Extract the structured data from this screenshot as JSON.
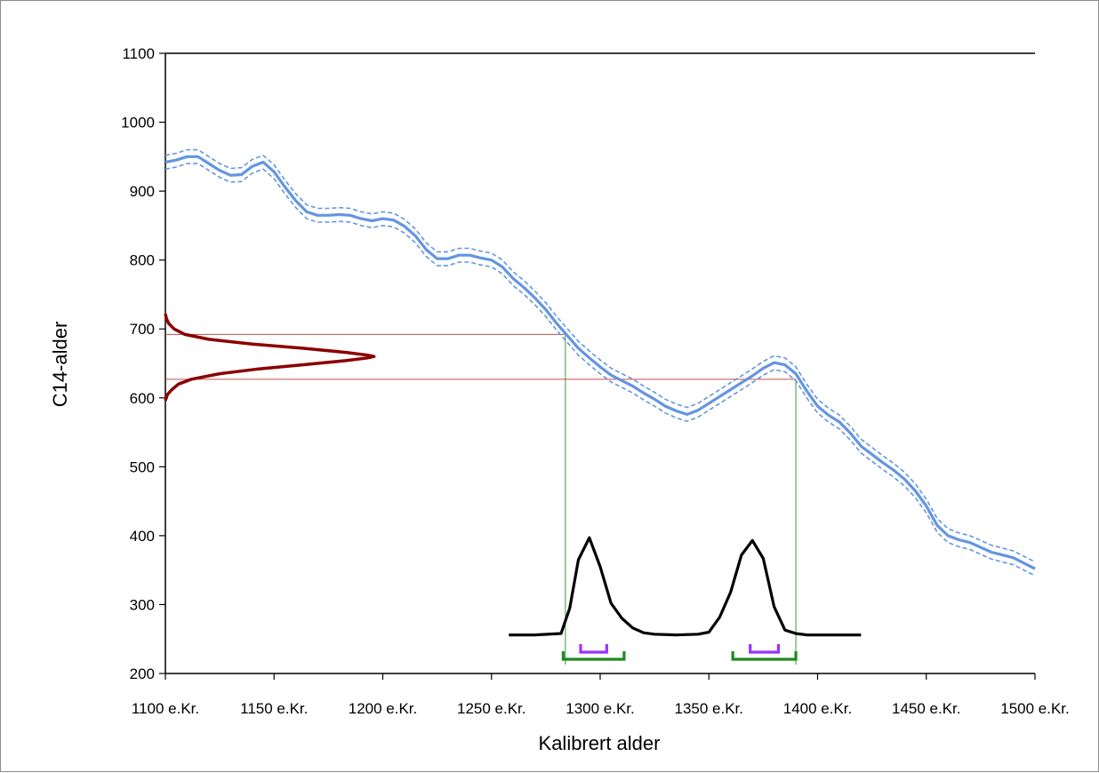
{
  "chart_data": {
    "type": "line",
    "xlabel": "Kalibrert alder",
    "ylabel": "C14-alder",
    "xlim": [
      1100,
      1500
    ],
    "ylim": [
      200,
      1100
    ],
    "x_ticks": [
      1100,
      1150,
      1200,
      1250,
      1300,
      1350,
      1400,
      1450,
      1500
    ],
    "x_tick_labels": [
      "1100 e.Kr.",
      "1150 e.Kr.",
      "1200 e.Kr.",
      "1250 e.Kr.",
      "1300 e.Kr.",
      "1350 e.Kr.",
      "1400 e.Kr.",
      "1450 e.Kr.",
      "1500 e.Kr."
    ],
    "y_ticks": [
      200,
      300,
      400,
      500,
      600,
      700,
      800,
      900,
      1000,
      1100
    ],
    "y_tick_labels": [
      "200",
      "300",
      "400",
      "500",
      "600",
      "700",
      "800",
      "900",
      "1000",
      "1100"
    ],
    "grid": false,
    "colors": {
      "calibration_curve": "#6495e0",
      "c14_distribution": "#8b0000",
      "range_lines_horizontal": "#c0504d",
      "range_lines_vertical": "#3a9a3a",
      "calibrated_distribution": "#000000",
      "range_95": "#1e8a1e",
      "range_68": "#9933ff"
    },
    "series": [
      {
        "style": "solid",
        "x": [
          1100,
          1105,
          1110,
          1115,
          1120,
          1125,
          1130,
          1135,
          1140,
          1145,
          1150,
          1155,
          1160,
          1165,
          1170,
          1175,
          1180,
          1185,
          1190,
          1195,
          1200,
          1205,
          1210,
          1215,
          1220,
          1225,
          1230,
          1235,
          1240,
          1245,
          1250,
          1255,
          1260,
          1265,
          1270,
          1275,
          1280,
          1285,
          1290,
          1295,
          1300,
          1305,
          1310,
          1315,
          1320,
          1325,
          1330,
          1335,
          1340,
          1345,
          1350,
          1355,
          1360,
          1365,
          1370,
          1375,
          1380,
          1385,
          1390,
          1395,
          1400,
          1405,
          1410,
          1415,
          1420,
          1425,
          1430,
          1435,
          1440,
          1445,
          1450,
          1455,
          1460,
          1465,
          1470,
          1475,
          1480,
          1485,
          1490,
          1495,
          1500
        ],
        "y": [
          942,
          945,
          950,
          950,
          940,
          930,
          923,
          924,
          936,
          942,
          928,
          906,
          886,
          870,
          865,
          865,
          866,
          865,
          860,
          857,
          860,
          858,
          849,
          835,
          815,
          802,
          802,
          807,
          807,
          803,
          800,
          790,
          773,
          760,
          745,
          728,
          708,
          690,
          672,
          658,
          645,
          633,
          625,
          617,
          607,
          598,
          588,
          581,
          576,
          582,
          592,
          602,
          612,
          622,
          632,
          643,
          651,
          648,
          635,
          610,
          588,
          575,
          565,
          549,
          530,
          518,
          506,
          495,
          482,
          465,
          443,
          415,
          400,
          394,
          390,
          383,
          376,
          372,
          368,
          360,
          352
        ]
      },
      {
        "style": "dashed",
        "x": [
          1100,
          1105,
          1110,
          1115,
          1120,
          1125,
          1130,
          1135,
          1140,
          1145,
          1150,
          1155,
          1160,
          1165,
          1170,
          1175,
          1180,
          1185,
          1190,
          1195,
          1200,
          1205,
          1210,
          1215,
          1220,
          1225,
          1230,
          1235,
          1240,
          1245,
          1250,
          1255,
          1260,
          1265,
          1270,
          1275,
          1280,
          1285,
          1290,
          1295,
          1300,
          1305,
          1310,
          1315,
          1320,
          1325,
          1330,
          1335,
          1340,
          1345,
          1350,
          1355,
          1360,
          1365,
          1370,
          1375,
          1380,
          1385,
          1390,
          1395,
          1400,
          1405,
          1410,
          1415,
          1420,
          1425,
          1430,
          1435,
          1440,
          1445,
          1450,
          1455,
          1460,
          1465,
          1470,
          1475,
          1480,
          1485,
          1490,
          1495,
          1500
        ],
        "y": [
          952,
          955,
          960,
          960,
          950,
          940,
          933,
          934,
          946,
          952,
          938,
          916,
          896,
          880,
          875,
          875,
          876,
          875,
          870,
          867,
          870,
          868,
          859,
          845,
          825,
          812,
          812,
          817,
          817,
          813,
          810,
          800,
          783,
          770,
          755,
          738,
          718,
          700,
          682,
          668,
          655,
          643,
          635,
          627,
          617,
          608,
          598,
          591,
          586,
          592,
          602,
          612,
          622,
          632,
          642,
          653,
          661,
          658,
          645,
          620,
          598,
          585,
          575,
          559,
          540,
          528,
          516,
          505,
          492,
          475,
          453,
          425,
          410,
          404,
          400,
          393,
          386,
          382,
          378,
          370,
          362
        ]
      },
      {
        "style": "dashed",
        "x": [
          1100,
          1105,
          1110,
          1115,
          1120,
          1125,
          1130,
          1135,
          1140,
          1145,
          1150,
          1155,
          1160,
          1165,
          1170,
          1175,
          1180,
          1185,
          1190,
          1195,
          1200,
          1205,
          1210,
          1215,
          1220,
          1225,
          1230,
          1235,
          1240,
          1245,
          1250,
          1255,
          1260,
          1265,
          1270,
          1275,
          1280,
          1285,
          1290,
          1295,
          1300,
          1305,
          1310,
          1315,
          1320,
          1325,
          1330,
          1335,
          1340,
          1345,
          1350,
          1355,
          1360,
          1365,
          1370,
          1375,
          1380,
          1385,
          1390,
          1395,
          1400,
          1405,
          1410,
          1415,
          1420,
          1425,
          1430,
          1435,
          1440,
          1445,
          1450,
          1455,
          1460,
          1465,
          1470,
          1475,
          1480,
          1485,
          1490,
          1495,
          1500
        ],
        "y": [
          932,
          935,
          940,
          940,
          930,
          920,
          913,
          914,
          926,
          932,
          918,
          896,
          876,
          860,
          855,
          855,
          856,
          855,
          850,
          847,
          850,
          848,
          839,
          825,
          805,
          792,
          792,
          797,
          797,
          793,
          790,
          780,
          763,
          750,
          735,
          718,
          698,
          680,
          662,
          648,
          635,
          623,
          615,
          607,
          597,
          588,
          578,
          571,
          566,
          572,
          582,
          592,
          602,
          612,
          622,
          633,
          641,
          638,
          625,
          600,
          578,
          565,
          555,
          539,
          520,
          508,
          496,
          485,
          472,
          455,
          433,
          405,
          390,
          384,
          380,
          373,
          366,
          362,
          358,
          350,
          342
        ]
      }
    ],
    "c14_distribution": {
      "mean": 660,
      "range": [
        627,
        692
      ],
      "curve_y": [
        596,
        605,
        612,
        620,
        627,
        635,
        642,
        648,
        654,
        658,
        660,
        662,
        666,
        672,
        678,
        685,
        692,
        700,
        708,
        715,
        722
      ],
      "curve_x": [
        1100.0,
        1101.0,
        1103.0,
        1106.0,
        1112.0,
        1125.0,
        1143.0,
        1163.0,
        1183.0,
        1193.0,
        1196.0,
        1193.0,
        1183.0,
        1163.0,
        1140.0,
        1120.0,
        1109.0,
        1104.0,
        1101.5,
        1100.5,
        1100.0
      ]
    },
    "calibrated_distribution": {
      "baseline": 256,
      "x": [
        1258,
        1270,
        1282,
        1286,
        1290,
        1295,
        1300,
        1305,
        1310,
        1315,
        1320,
        1325,
        1335,
        1345,
        1350,
        1355,
        1360,
        1365,
        1370,
        1375,
        1380,
        1385,
        1390,
        1395,
        1400,
        1420
      ],
      "y": [
        256,
        256,
        258,
        295,
        365,
        397,
        355,
        302,
        280,
        266,
        259,
        257,
        256,
        257,
        260,
        282,
        318,
        372,
        393,
        367,
        297,
        263,
        258,
        256,
        256,
        256
      ]
    },
    "range_lines": {
      "horizontal_y": [
        692,
        627
      ],
      "vertical_x": [
        1284,
        1390
      ]
    },
    "bracket_95": [
      {
        "from": 1283,
        "to": 1311
      },
      {
        "from": 1361,
        "to": 1390
      }
    ],
    "bracket_68": [
      {
        "from": 1291,
        "to": 1303
      },
      {
        "from": 1369,
        "to": 1382
      }
    ]
  }
}
